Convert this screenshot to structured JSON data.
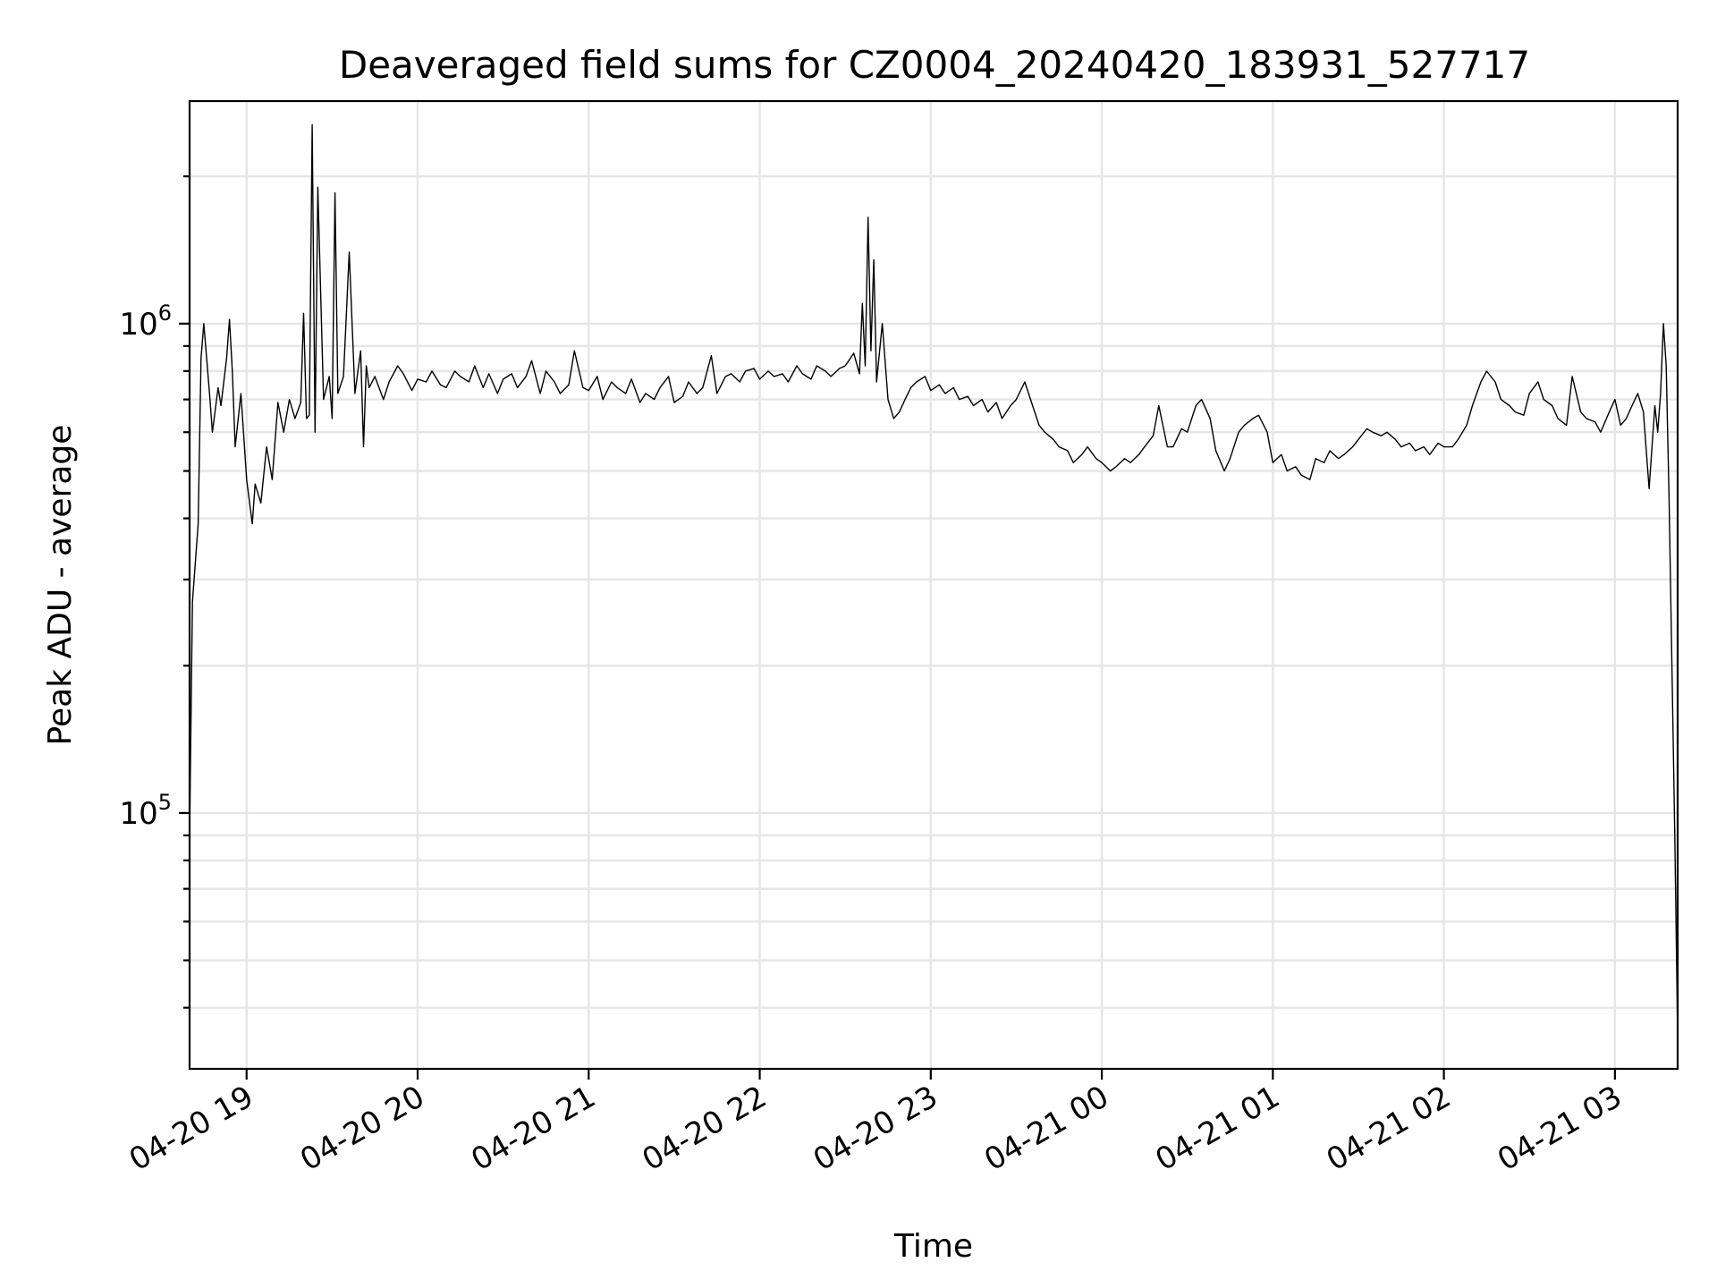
{
  "chart_data": {
    "type": "line",
    "title": "Deaveraged field sums for CZ0004_20240420_183931_527717",
    "xlabel": "Time",
    "ylabel": "Peak ADU - average",
    "xlim": [
      "2024-04-20 18:40",
      "2024-04-21 03:22"
    ],
    "ylim": [
      30000,
      2850000
    ],
    "yscale": "log",
    "grid": true,
    "grid_minor": true,
    "line_color": "#000000",
    "x_ticks": [
      {
        "value": "2024-04-20 19:00",
        "label": "04-20 19"
      },
      {
        "value": "2024-04-20 20:00",
        "label": "04-20 20"
      },
      {
        "value": "2024-04-20 21:00",
        "label": "04-20 21"
      },
      {
        "value": "2024-04-20 22:00",
        "label": "04-20 22"
      },
      {
        "value": "2024-04-20 23:00",
        "label": "04-20 23"
      },
      {
        "value": "2024-04-21 00:00",
        "label": "04-21 00"
      },
      {
        "value": "2024-04-21 01:00",
        "label": "04-21 01"
      },
      {
        "value": "2024-04-21 02:00",
        "label": "04-21 02"
      },
      {
        "value": "2024-04-21 03:00",
        "label": "04-21 03"
      }
    ],
    "y_ticks": [
      {
        "value": 100000,
        "base": "10",
        "exp": "5"
      },
      {
        "value": 1000000,
        "base": "10",
        "exp": "6"
      }
    ],
    "y_minor_ticks": [
      40000,
      50000,
      60000,
      70000,
      80000,
      90000,
      200000,
      300000,
      400000,
      500000,
      600000,
      700000,
      800000,
      900000,
      2000000
    ],
    "series": [
      {
        "x": [
          "2024-04-20 18:40",
          "2024-04-20 18:41",
          "2024-04-20 18:43",
          "2024-04-20 18:44",
          "2024-04-20 18:45",
          "2024-04-20 18:47",
          "2024-04-20 18:48",
          "2024-04-20 18:50",
          "2024-04-20 18:51",
          "2024-04-20 18:53",
          "2024-04-20 18:54",
          "2024-04-20 18:55",
          "2024-04-20 18:56",
          "2024-04-20 18:58",
          "2024-04-20 19:00",
          "2024-04-20 19:02",
          "2024-04-20 19:03",
          "2024-04-20 19:05",
          "2024-04-20 19:07",
          "2024-04-20 19:09",
          "2024-04-20 19:11",
          "2024-04-20 19:13",
          "2024-04-20 19:15",
          "2024-04-20 19:17",
          "2024-04-20 19:19",
          "2024-04-20 19:20",
          "2024-04-20 19:21",
          "2024-04-20 19:22",
          "2024-04-20 19:23",
          "2024-04-20 19:24",
          "2024-04-20 19:25",
          "2024-04-20 19:27",
          "2024-04-20 19:29",
          "2024-04-20 19:30",
          "2024-04-20 19:31",
          "2024-04-20 19:32",
          "2024-04-20 19:34",
          "2024-04-20 19:36",
          "2024-04-20 19:38",
          "2024-04-20 19:40",
          "2024-04-20 19:41",
          "2024-04-20 19:42",
          "2024-04-20 19:43",
          "2024-04-20 19:45",
          "2024-04-20 19:48",
          "2024-04-20 19:50",
          "2024-04-20 19:53",
          "2024-04-20 19:55",
          "2024-04-20 19:58",
          "2024-04-20 20:00",
          "2024-04-20 20:03",
          "2024-04-20 20:05",
          "2024-04-20 20:08",
          "2024-04-20 20:10",
          "2024-04-20 20:13",
          "2024-04-20 20:15",
          "2024-04-20 20:18",
          "2024-04-20 20:20",
          "2024-04-20 20:23",
          "2024-04-20 20:25",
          "2024-04-20 20:28",
          "2024-04-20 20:30",
          "2024-04-20 20:33",
          "2024-04-20 20:35",
          "2024-04-20 20:38",
          "2024-04-20 20:40",
          "2024-04-20 20:43",
          "2024-04-20 20:45",
          "2024-04-20 20:48",
          "2024-04-20 20:50",
          "2024-04-20 20:53",
          "2024-04-20 20:55",
          "2024-04-20 20:58",
          "2024-04-20 21:00",
          "2024-04-20 21:03",
          "2024-04-20 21:05",
          "2024-04-20 21:08",
          "2024-04-20 21:10",
          "2024-04-20 21:13",
          "2024-04-20 21:15",
          "2024-04-20 21:18",
          "2024-04-20 21:20",
          "2024-04-20 21:23",
          "2024-04-20 21:25",
          "2024-04-20 21:28",
          "2024-04-20 21:30",
          "2024-04-20 21:33",
          "2024-04-20 21:35",
          "2024-04-20 21:38",
          "2024-04-20 21:40",
          "2024-04-20 21:43",
          "2024-04-20 21:45",
          "2024-04-20 21:48",
          "2024-04-20 21:50",
          "2024-04-20 21:53",
          "2024-04-20 21:55",
          "2024-04-20 21:58",
          "2024-04-20 22:00",
          "2024-04-20 22:03",
          "2024-04-20 22:05",
          "2024-04-20 22:08",
          "2024-04-20 22:10",
          "2024-04-20 22:13",
          "2024-04-20 22:15",
          "2024-04-20 22:18",
          "2024-04-20 22:20",
          "2024-04-20 22:23",
          "2024-04-20 22:25",
          "2024-04-20 22:28",
          "2024-04-20 22:30",
          "2024-04-20 22:33",
          "2024-04-20 22:35",
          "2024-04-20 22:36",
          "2024-04-20 22:37",
          "2024-04-20 22:38",
          "2024-04-20 22:39",
          "2024-04-20 22:40",
          "2024-04-20 22:41",
          "2024-04-20 22:43",
          "2024-04-20 22:45",
          "2024-04-20 22:47",
          "2024-04-20 22:49",
          "2024-04-20 22:51",
          "2024-04-20 22:53",
          "2024-04-20 22:55",
          "2024-04-20 22:58",
          "2024-04-20 23:00",
          "2024-04-20 23:03",
          "2024-04-20 23:05",
          "2024-04-20 23:08",
          "2024-04-20 23:10",
          "2024-04-20 23:13",
          "2024-04-20 23:15",
          "2024-04-20 23:18",
          "2024-04-20 23:20",
          "2024-04-20 23:23",
          "2024-04-20 23:25",
          "2024-04-20 23:28",
          "2024-04-20 23:30",
          "2024-04-20 23:33",
          "2024-04-20 23:35",
          "2024-04-20 23:38",
          "2024-04-20 23:40",
          "2024-04-20 23:43",
          "2024-04-20 23:45",
          "2024-04-20 23:48",
          "2024-04-20 23:50",
          "2024-04-20 23:53",
          "2024-04-20 23:55",
          "2024-04-20 23:58",
          "2024-04-21 00:00",
          "2024-04-21 00:03",
          "2024-04-21 00:05",
          "2024-04-21 00:08",
          "2024-04-21 00:10",
          "2024-04-21 00:13",
          "2024-04-21 00:15",
          "2024-04-21 00:18",
          "2024-04-21 00:20",
          "2024-04-21 00:23",
          "2024-04-21 00:25",
          "2024-04-21 00:28",
          "2024-04-21 00:30",
          "2024-04-21 00:33",
          "2024-04-21 00:35",
          "2024-04-21 00:38",
          "2024-04-21 00:40",
          "2024-04-21 00:43",
          "2024-04-21 00:45",
          "2024-04-21 00:48",
          "2024-04-21 00:50",
          "2024-04-21 00:53",
          "2024-04-21 00:55",
          "2024-04-21 00:58",
          "2024-04-21 01:00",
          "2024-04-21 01:03",
          "2024-04-21 01:05",
          "2024-04-21 01:08",
          "2024-04-21 01:10",
          "2024-04-21 01:13",
          "2024-04-21 01:15",
          "2024-04-21 01:18",
          "2024-04-21 01:20",
          "2024-04-21 01:23",
          "2024-04-21 01:25",
          "2024-04-21 01:28",
          "2024-04-21 01:30",
          "2024-04-21 01:33",
          "2024-04-21 01:35",
          "2024-04-21 01:38",
          "2024-04-21 01:40",
          "2024-04-21 01:43",
          "2024-04-21 01:45",
          "2024-04-21 01:48",
          "2024-04-21 01:50",
          "2024-04-21 01:53",
          "2024-04-21 01:55",
          "2024-04-21 01:58",
          "2024-04-21 02:00",
          "2024-04-21 02:03",
          "2024-04-21 02:05",
          "2024-04-21 02:08",
          "2024-04-21 02:10",
          "2024-04-21 02:13",
          "2024-04-21 02:15",
          "2024-04-21 02:18",
          "2024-04-21 02:20",
          "2024-04-21 02:23",
          "2024-04-21 02:25",
          "2024-04-21 02:28",
          "2024-04-21 02:30",
          "2024-04-21 02:33",
          "2024-04-21 02:35",
          "2024-04-21 02:38",
          "2024-04-21 02:40",
          "2024-04-21 02:43",
          "2024-04-21 02:45",
          "2024-04-21 02:48",
          "2024-04-21 02:50",
          "2024-04-21 02:53",
          "2024-04-21 02:55",
          "2024-04-21 02:58",
          "2024-04-21 03:00",
          "2024-04-21 03:02",
          "2024-04-21 03:04",
          "2024-04-21 03:06",
          "2024-04-21 03:08",
          "2024-04-21 03:10",
          "2024-04-21 03:12",
          "2024-04-21 03:14",
          "2024-04-21 03:15",
          "2024-04-21 03:16",
          "2024-04-21 03:17",
          "2024-04-21 03:18",
          "2024-04-21 03:19",
          "2024-04-21 03:20",
          "2024-04-21 03:21",
          "2024-04-21 03:22"
        ],
        "y": [
          90000,
          270000,
          390000,
          850000,
          1000000,
          720000,
          600000,
          740000,
          680000,
          850000,
          1020000,
          800000,
          560000,
          720000,
          480000,
          390000,
          470000,
          430000,
          560000,
          480000,
          690000,
          600000,
          700000,
          640000,
          690000,
          1050000,
          640000,
          650000,
          2550000,
          600000,
          1900000,
          700000,
          780000,
          640000,
          1850000,
          720000,
          780000,
          1400000,
          720000,
          880000,
          560000,
          820000,
          740000,
          780000,
          700000,
          760000,
          820000,
          790000,
          730000,
          770000,
          760000,
          800000,
          750000,
          740000,
          800000,
          780000,
          760000,
          820000,
          740000,
          790000,
          720000,
          770000,
          790000,
          740000,
          780000,
          840000,
          720000,
          800000,
          760000,
          720000,
          750000,
          880000,
          740000,
          730000,
          780000,
          700000,
          760000,
          740000,
          720000,
          770000,
          690000,
          720000,
          700000,
          740000,
          780000,
          690000,
          710000,
          760000,
          720000,
          740000,
          860000,
          720000,
          780000,
          790000,
          760000,
          800000,
          810000,
          770000,
          800000,
          780000,
          790000,
          760000,
          820000,
          790000,
          770000,
          820000,
          800000,
          780000,
          810000,
          820000,
          870000,
          790000,
          1100000,
          820000,
          1650000,
          880000,
          1350000,
          760000,
          1000000,
          700000,
          640000,
          660000,
          700000,
          740000,
          760000,
          780000,
          730000,
          750000,
          720000,
          740000,
          700000,
          710000,
          680000,
          700000,
          660000,
          690000,
          640000,
          680000,
          700000,
          760000,
          700000,
          620000,
          600000,
          580000,
          560000,
          550000,
          520000,
          540000,
          560000,
          530000,
          520000,
          500000,
          510000,
          530000,
          520000,
          540000,
          560000,
          590000,
          680000,
          560000,
          560000,
          610000,
          600000,
          680000,
          700000,
          640000,
          550000,
          500000,
          530000,
          600000,
          620000,
          640000,
          650000,
          600000,
          520000,
          540000,
          500000,
          510000,
          490000,
          480000,
          530000,
          520000,
          550000,
          530000,
          540000,
          560000,
          580000,
          610000,
          600000,
          590000,
          600000,
          580000,
          560000,
          570000,
          550000,
          560000,
          540000,
          570000,
          560000,
          560000,
          580000,
          620000,
          680000,
          760000,
          800000,
          760000,
          700000,
          680000,
          660000,
          650000,
          720000,
          760000,
          700000,
          680000,
          640000,
          620000,
          780000,
          660000,
          640000,
          630000,
          600000,
          660000,
          700000,
          620000,
          640000,
          680000,
          720000,
          660000,
          460000,
          680000,
          600000,
          720000,
          1000000,
          820000,
          440000,
          200000,
          90000,
          35000
        ]
      }
    ]
  }
}
